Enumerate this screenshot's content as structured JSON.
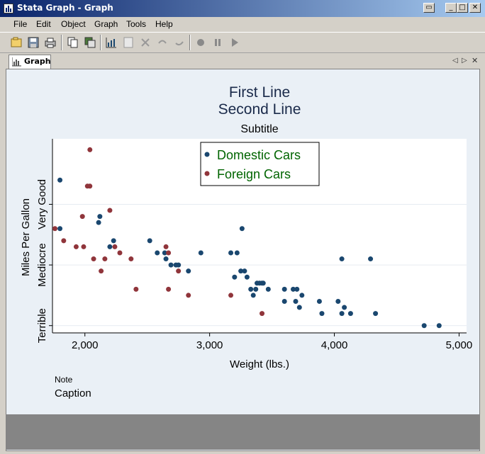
{
  "window": {
    "title": "Stata Graph - Graph",
    "controls": {
      "restore": "▭",
      "minimize": "_",
      "maximize": "□",
      "close": "✕"
    }
  },
  "menu": [
    "File",
    "Edit",
    "Object",
    "Graph",
    "Tools",
    "Help"
  ],
  "toolbar": {
    "icons": [
      "open-graph-icon",
      "save-icon",
      "print-icon",
      "copy-icon",
      "merge-icon",
      "graph-editor-icon",
      "data-editor-icon",
      "pointer-icon",
      "undo-icon",
      "redo-icon",
      "record-icon",
      "pause-icon",
      "play-icon"
    ]
  },
  "tab": {
    "label": "Graph"
  },
  "colors": {
    "domestic": "#1a476f",
    "foreign": "#90353b",
    "legend_text": "#006400",
    "title": "#1a2a4a",
    "plot_bg": "#ffffff",
    "graph_bg": "#eaf0f6"
  },
  "chart_data": {
    "type": "scatter",
    "title": [
      "First Line",
      "Second Line"
    ],
    "subtitle": "Subtitle",
    "xlabel": "Weight (lbs.)",
    "ylabel": "Miles Per Gallon",
    "note": "Note",
    "caption": "Caption",
    "xlim": [
      1740,
      5060
    ],
    "ylim": [
      10.8,
      42.8
    ],
    "xticks": [
      {
        "value": 2000,
        "label": "2,000"
      },
      {
        "value": 3000,
        "label": "3,000"
      },
      {
        "value": 4000,
        "label": "4,000"
      },
      {
        "value": 5000,
        "label": "5,000"
      }
    ],
    "yticks": [
      {
        "value": 12,
        "label": "Terrible"
      },
      {
        "value": 22,
        "label": "Mediocre"
      },
      {
        "value": 32,
        "label": "Very Good"
      }
    ],
    "grid": "horizontal",
    "legend_position": "top-center",
    "series": [
      {
        "name": "Domestic Cars",
        "color": "#1a476f",
        "points": [
          [
            1800,
            36
          ],
          [
            1800,
            28
          ],
          [
            2110,
            29
          ],
          [
            2120,
            30
          ],
          [
            2200,
            25
          ],
          [
            2230,
            26
          ],
          [
            2520,
            26
          ],
          [
            2580,
            24
          ],
          [
            2640,
            24
          ],
          [
            2650,
            23
          ],
          [
            2690,
            22
          ],
          [
            2730,
            22
          ],
          [
            2750,
            22
          ],
          [
            2830,
            21
          ],
          [
            2930,
            24
          ],
          [
            3170,
            24
          ],
          [
            3200,
            20
          ],
          [
            3220,
            24
          ],
          [
            3250,
            21
          ],
          [
            3260,
            28
          ],
          [
            3280,
            21
          ],
          [
            3300,
            20
          ],
          [
            3330,
            18
          ],
          [
            3350,
            17
          ],
          [
            3370,
            18
          ],
          [
            3380,
            19
          ],
          [
            3400,
            19
          ],
          [
            3420,
            19
          ],
          [
            3430,
            19
          ],
          [
            3470,
            18
          ],
          [
            3600,
            18
          ],
          [
            3600,
            16
          ],
          [
            3670,
            18
          ],
          [
            3690,
            16
          ],
          [
            3700,
            18
          ],
          [
            3720,
            15
          ],
          [
            3740,
            17
          ],
          [
            3880,
            16
          ],
          [
            3900,
            14
          ],
          [
            4030,
            16
          ],
          [
            4060,
            14
          ],
          [
            4060,
            23
          ],
          [
            4080,
            15
          ],
          [
            4130,
            14
          ],
          [
            4290,
            23
          ],
          [
            4330,
            14
          ],
          [
            4720,
            12
          ],
          [
            4840,
            12
          ]
        ]
      },
      {
        "name": "Foreign Cars",
        "color": "#90353b",
        "points": [
          [
            1760,
            28
          ],
          [
            1830,
            26
          ],
          [
            1930,
            25
          ],
          [
            1980,
            30
          ],
          [
            1990,
            25
          ],
          [
            2020,
            35
          ],
          [
            2040,
            35
          ],
          [
            2040,
            41
          ],
          [
            2070,
            23
          ],
          [
            2130,
            21
          ],
          [
            2160,
            23
          ],
          [
            2200,
            31
          ],
          [
            2240,
            25
          ],
          [
            2280,
            24
          ],
          [
            2370,
            23
          ],
          [
            2410,
            18
          ],
          [
            2650,
            25
          ],
          [
            2670,
            18
          ],
          [
            2670,
            24
          ],
          [
            2750,
            21
          ],
          [
            2830,
            17
          ],
          [
            3170,
            17
          ],
          [
            3420,
            14
          ]
        ]
      }
    ]
  }
}
